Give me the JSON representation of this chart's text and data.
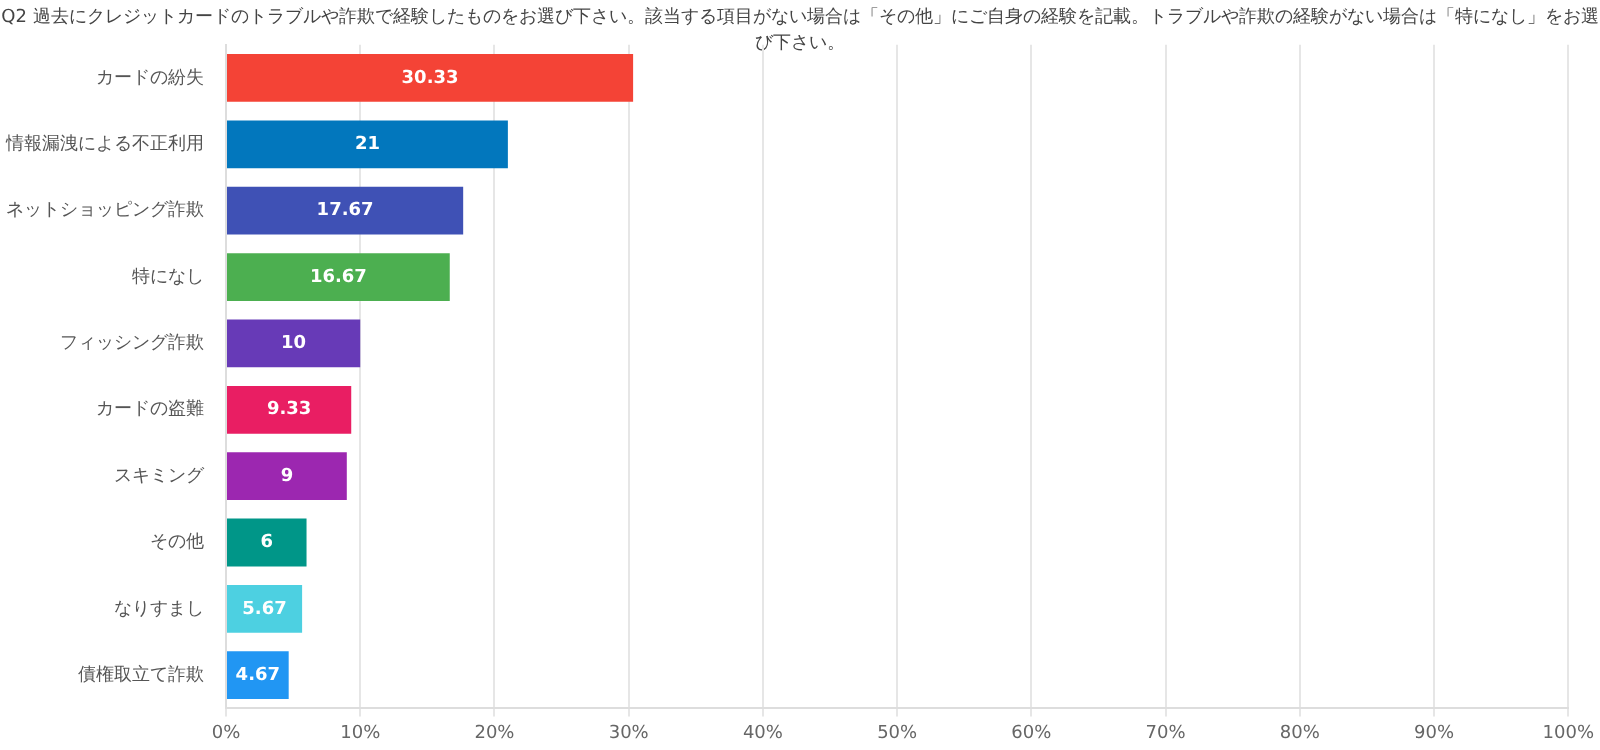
{
  "chart_data": {
    "type": "bar",
    "orientation": "horizontal",
    "title": "Q2 過去にクレジットカードのトラブルや詐欺で経験したものをお選び下さい。該当する項目がない場合は「その他」にご自身の経験を記載。トラブルや詐欺の経験がない場合は「特になし」をお選び下さい。",
    "categories": [
      "カードの紛失",
      "情報漏洩による不正利用",
      "ネットショッピング詐欺",
      "特になし",
      "フィッシング詐欺",
      "カードの盗難",
      "スキミング",
      "その他",
      "なりすまし",
      "債権取立て詐欺"
    ],
    "values": [
      30.33,
      21,
      17.67,
      16.67,
      10,
      9.33,
      9,
      6,
      5.67,
      4.67
    ],
    "colors": [
      "#f44336",
      "#0277bd",
      "#3f51b5",
      "#4caf50",
      "#673ab7",
      "#e91e63",
      "#9c27b0",
      "#009688",
      "#4dd0e1",
      "#2196f3"
    ],
    "xlim": [
      0,
      100
    ],
    "xticks": [
      {
        "value": 0,
        "label": "0%"
      },
      {
        "value": 10,
        "label": "10%"
      },
      {
        "value": 20,
        "label": "20%"
      },
      {
        "value": 30,
        "label": "30%"
      },
      {
        "value": 40,
        "label": "40%"
      },
      {
        "value": 50,
        "label": "50%"
      },
      {
        "value": 60,
        "label": "60%"
      },
      {
        "value": 70,
        "label": "70%"
      },
      {
        "value": 80,
        "label": "80%"
      },
      {
        "value": 90,
        "label": "90%"
      },
      {
        "value": 100,
        "label": "100%"
      }
    ],
    "grid": "x",
    "data_labels": true,
    "legend": false
  }
}
